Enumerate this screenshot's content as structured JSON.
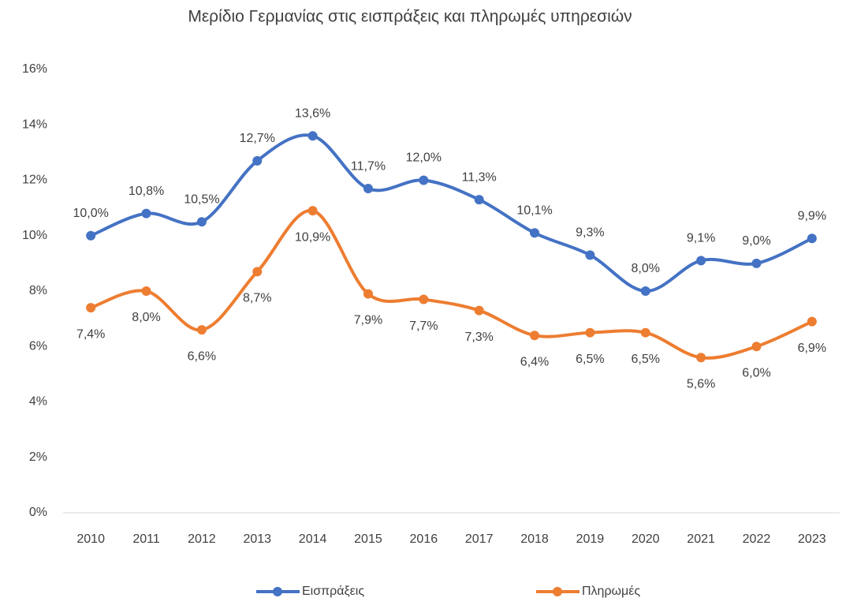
{
  "chart_data": {
    "type": "line",
    "title": "Μερίδιο Γερμανίας στις εισπράξεις και πληρωμές υπηρεσιών",
    "categories": [
      "2010",
      "2011",
      "2012",
      "2013",
      "2014",
      "2015",
      "2016",
      "2017",
      "2018",
      "2019",
      "2020",
      "2021",
      "2022",
      "2023"
    ],
    "series": [
      {
        "name": "Εισπράξεις",
        "color": "#4472c4",
        "values": [
          10.0,
          10.8,
          10.5,
          12.7,
          13.6,
          11.7,
          12.0,
          11.3,
          10.1,
          9.3,
          8.0,
          9.1,
          9.0,
          9.9
        ],
        "value_labels": [
          "10,0%",
          "10,8%",
          "10,5%",
          "12,7%",
          "13,6%",
          "11,7%",
          "12,0%",
          "11,3%",
          "10,1%",
          "9,3%",
          "8,0%",
          "9,1%",
          "9,0%",
          "9,9%"
        ]
      },
      {
        "name": "Πληρωμές",
        "color": "#ed7d31",
        "values": [
          7.4,
          8.0,
          6.6,
          8.7,
          10.9,
          7.9,
          7.7,
          7.3,
          6.4,
          6.5,
          6.5,
          5.6,
          6.0,
          6.9
        ],
        "value_labels": [
          "7,4%",
          "8,0%",
          "6,6%",
          "8,7%",
          "10,9%",
          "7,9%",
          "7,7%",
          "7,3%",
          "6,4%",
          "6,5%",
          "6,5%",
          "5,6%",
          "6,0%",
          "6,9%"
        ]
      }
    ],
    "ylim": [
      0,
      16
    ],
    "yticks": [
      {
        "value": 0,
        "label": "0%"
      },
      {
        "value": 2,
        "label": "2%"
      },
      {
        "value": 4,
        "label": "4%"
      },
      {
        "value": 6,
        "label": "6%"
      },
      {
        "value": 8,
        "label": "8%"
      },
      {
        "value": 10,
        "label": "10%"
      },
      {
        "value": 12,
        "label": "12%"
      },
      {
        "value": 14,
        "label": "14%"
      },
      {
        "value": 16,
        "label": "16%"
      }
    ],
    "grid": false,
    "legend": "bottom"
  }
}
